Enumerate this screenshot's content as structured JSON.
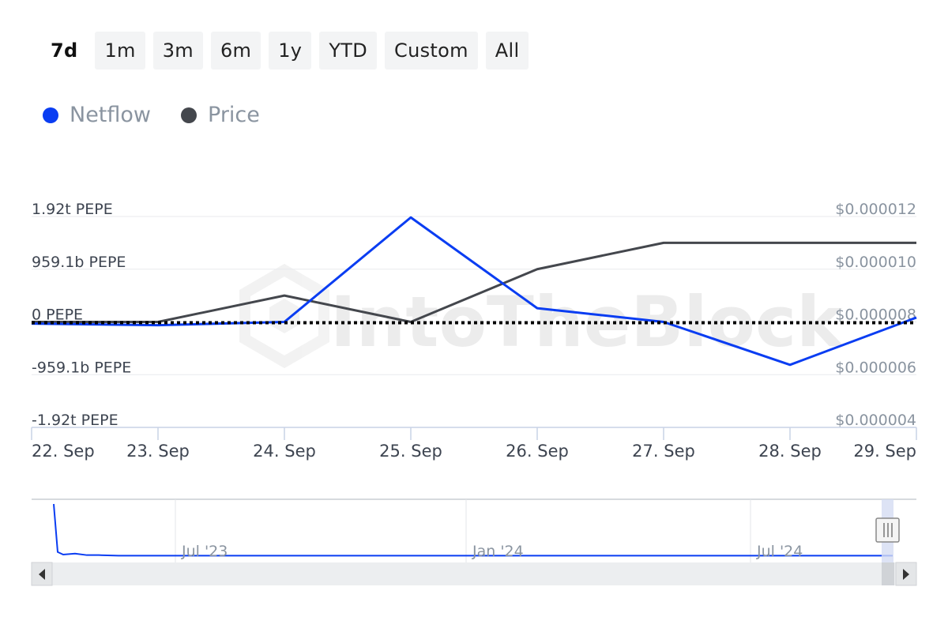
{
  "range_selector": {
    "buttons": [
      {
        "label": "7d",
        "active": true
      },
      {
        "label": "1m",
        "active": false
      },
      {
        "label": "3m",
        "active": false
      },
      {
        "label": "6m",
        "active": false
      },
      {
        "label": "1y",
        "active": false
      },
      {
        "label": "YTD",
        "active": false
      },
      {
        "label": "Custom",
        "active": false
      },
      {
        "label": "All",
        "active": false
      }
    ]
  },
  "legend": [
    {
      "label": "Netflow",
      "color": "#0a3df2"
    },
    {
      "label": "Price",
      "color": "#44474d"
    }
  ],
  "watermark": "IntoTheBlock",
  "chart_data": {
    "type": "line",
    "x": [
      "22. Sep",
      "23. Sep",
      "24. Sep",
      "25. Sep",
      "26. Sep",
      "27. Sep",
      "28. Sep",
      "29. Sep"
    ],
    "y_left": {
      "ticks": [
        "1.92t PEPE",
        "959.1b PEPE",
        "0 PEPE",
        "-959.1b PEPE",
        "-1.92t PEPE"
      ],
      "range": [
        -1918.2,
        1918.2
      ],
      "unit": "billion PEPE"
    },
    "y_right": {
      "ticks": [
        "$0.000012",
        "$0.000010",
        "$0.000008",
        "$0.000006",
        "$0.000004"
      ],
      "range": [
        4e-06,
        1.2e-05
      ]
    },
    "series": [
      {
        "name": "Netflow",
        "axis": "left",
        "color": "#0a3df2",
        "values": [
          -30,
          -60,
          0,
          1900,
          250,
          0,
          -780,
          80
        ]
      },
      {
        "name": "Price",
        "axis": "right",
        "color": "#44474d",
        "values": [
          8e-06,
          8e-06,
          9e-06,
          8e-06,
          1e-05,
          1.1e-05,
          1.1e-05,
          1.1e-05
        ]
      }
    ],
    "zero_line": {
      "style": "dotted",
      "value": 0
    },
    "grid": true
  },
  "navigator": {
    "labels": [
      "Jul '23",
      "Jan '24",
      "Jul '24"
    ],
    "series_values": [
      1.0,
      0.08,
      0.03,
      0.05,
      0.02,
      0.02,
      0.01,
      0.01,
      0.01,
      0.01,
      0.01,
      0.01,
      0.01,
      0.01,
      0.01,
      0.01,
      0.01
    ],
    "series_color": "#0a3df2"
  }
}
